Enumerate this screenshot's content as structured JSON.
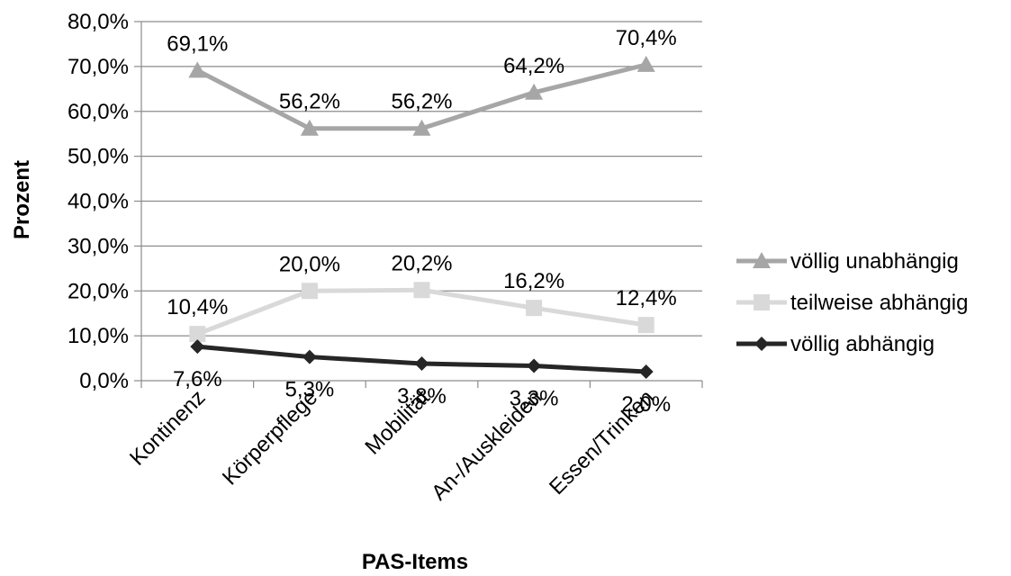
{
  "chart_data": {
    "type": "line",
    "xlabel": "PAS-Items",
    "ylabel": "Prozent",
    "ylim": [
      0,
      80
    ],
    "ytick_step": 10,
    "grid": true,
    "legend_position": "right",
    "categories": [
      "Kontinenz",
      "Körperpflege",
      "Mobilität",
      "An-/Auskleiden",
      "Essen/Trinken"
    ],
    "series": [
      {
        "name": "völlig unabhängig",
        "values": [
          69.1,
          56.2,
          56.2,
          64.2,
          70.4
        ],
        "labels": [
          "69,1%",
          "56,2%",
          "56,2%",
          "64,2%",
          "70,4%"
        ],
        "color": "#a6a6a6",
        "marker": "triangle"
      },
      {
        "name": "teilweise abhängig",
        "values": [
          10.4,
          20.0,
          20.2,
          16.2,
          12.4
        ],
        "labels": [
          "10,4%",
          "20,0%",
          "20,2%",
          "16,2%",
          "12,4%"
        ],
        "color": "#d9d9d9",
        "marker": "square"
      },
      {
        "name": "völlig abhängig",
        "values": [
          7.6,
          5.3,
          3.8,
          3.3,
          2.0
        ],
        "labels": [
          "7,6%",
          "5,3%",
          "3,8%",
          "3,3%",
          "2,0%"
        ],
        "color": "#262626",
        "marker": "diamond"
      }
    ],
    "ytick_labels": [
      "0,0%",
      "10,0%",
      "20,0%",
      "30,0%",
      "40,0%",
      "50,0%",
      "60,0%",
      "70,0%",
      "80,0%"
    ]
  }
}
